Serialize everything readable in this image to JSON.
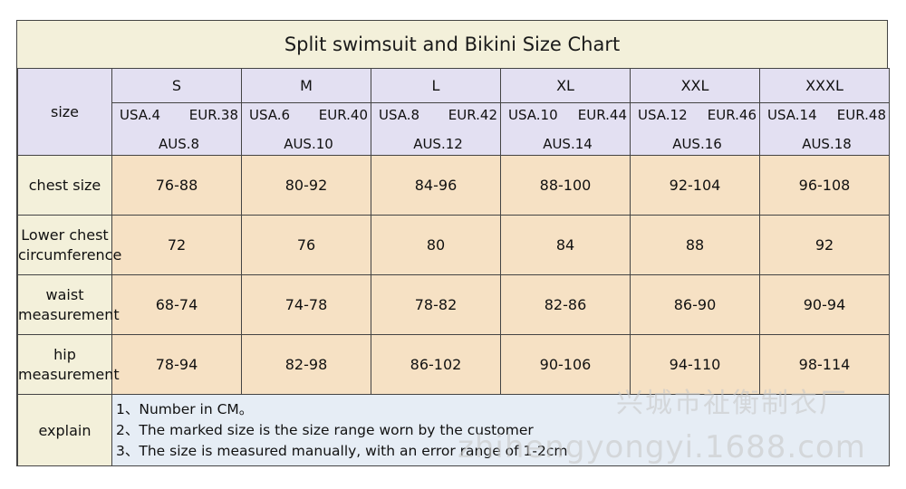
{
  "title": "Split swimsuit and Bikini Size Chart",
  "size_label": "size",
  "sizes": [
    {
      "name": "S",
      "usa": "USA.4",
      "eur": "EUR.38",
      "aus": "AUS.8"
    },
    {
      "name": "M",
      "usa": "USA.6",
      "eur": "EUR.40",
      "aus": "AUS.10"
    },
    {
      "name": "L",
      "usa": "USA.8",
      "eur": "EUR.42",
      "aus": "AUS.12"
    },
    {
      "name": "XL",
      "usa": "USA.10",
      "eur": "EUR.44",
      "aus": "AUS.14"
    },
    {
      "name": "XXL",
      "usa": "USA.12",
      "eur": "EUR.46",
      "aus": "AUS.16"
    },
    {
      "name": "XXXL",
      "usa": "USA.14",
      "eur": "EUR.48",
      "aus": "AUS.18"
    }
  ],
  "rows": [
    {
      "label": [
        "chest size"
      ],
      "values": [
        "76-88",
        "80-92",
        "84-96",
        "88-100",
        "92-104",
        "96-108"
      ]
    },
    {
      "label": [
        "Lower chest",
        "circumference"
      ],
      "values": [
        "72",
        "76",
        "80",
        "84",
        "88",
        "92"
      ]
    },
    {
      "label": [
        "waist",
        "measurement"
      ],
      "values": [
        "68-74",
        "74-78",
        "78-82",
        "82-86",
        "86-90",
        "90-94"
      ]
    },
    {
      "label": [
        "hip",
        "measurement"
      ],
      "values": [
        "78-94",
        "82-98",
        "86-102",
        "90-106",
        "94-110",
        "98-114"
      ]
    }
  ],
  "explain": {
    "label": "explain",
    "notes": [
      "1、Number in CM。",
      "2、The marked size is the size range worn by the customer",
      "3、The size is measured manually, with an error range of 1-2cm"
    ]
  },
  "watermark": {
    "cn": "兴城市祉衡制衣厂",
    "url": "zhihengyongyi.1688.com"
  }
}
